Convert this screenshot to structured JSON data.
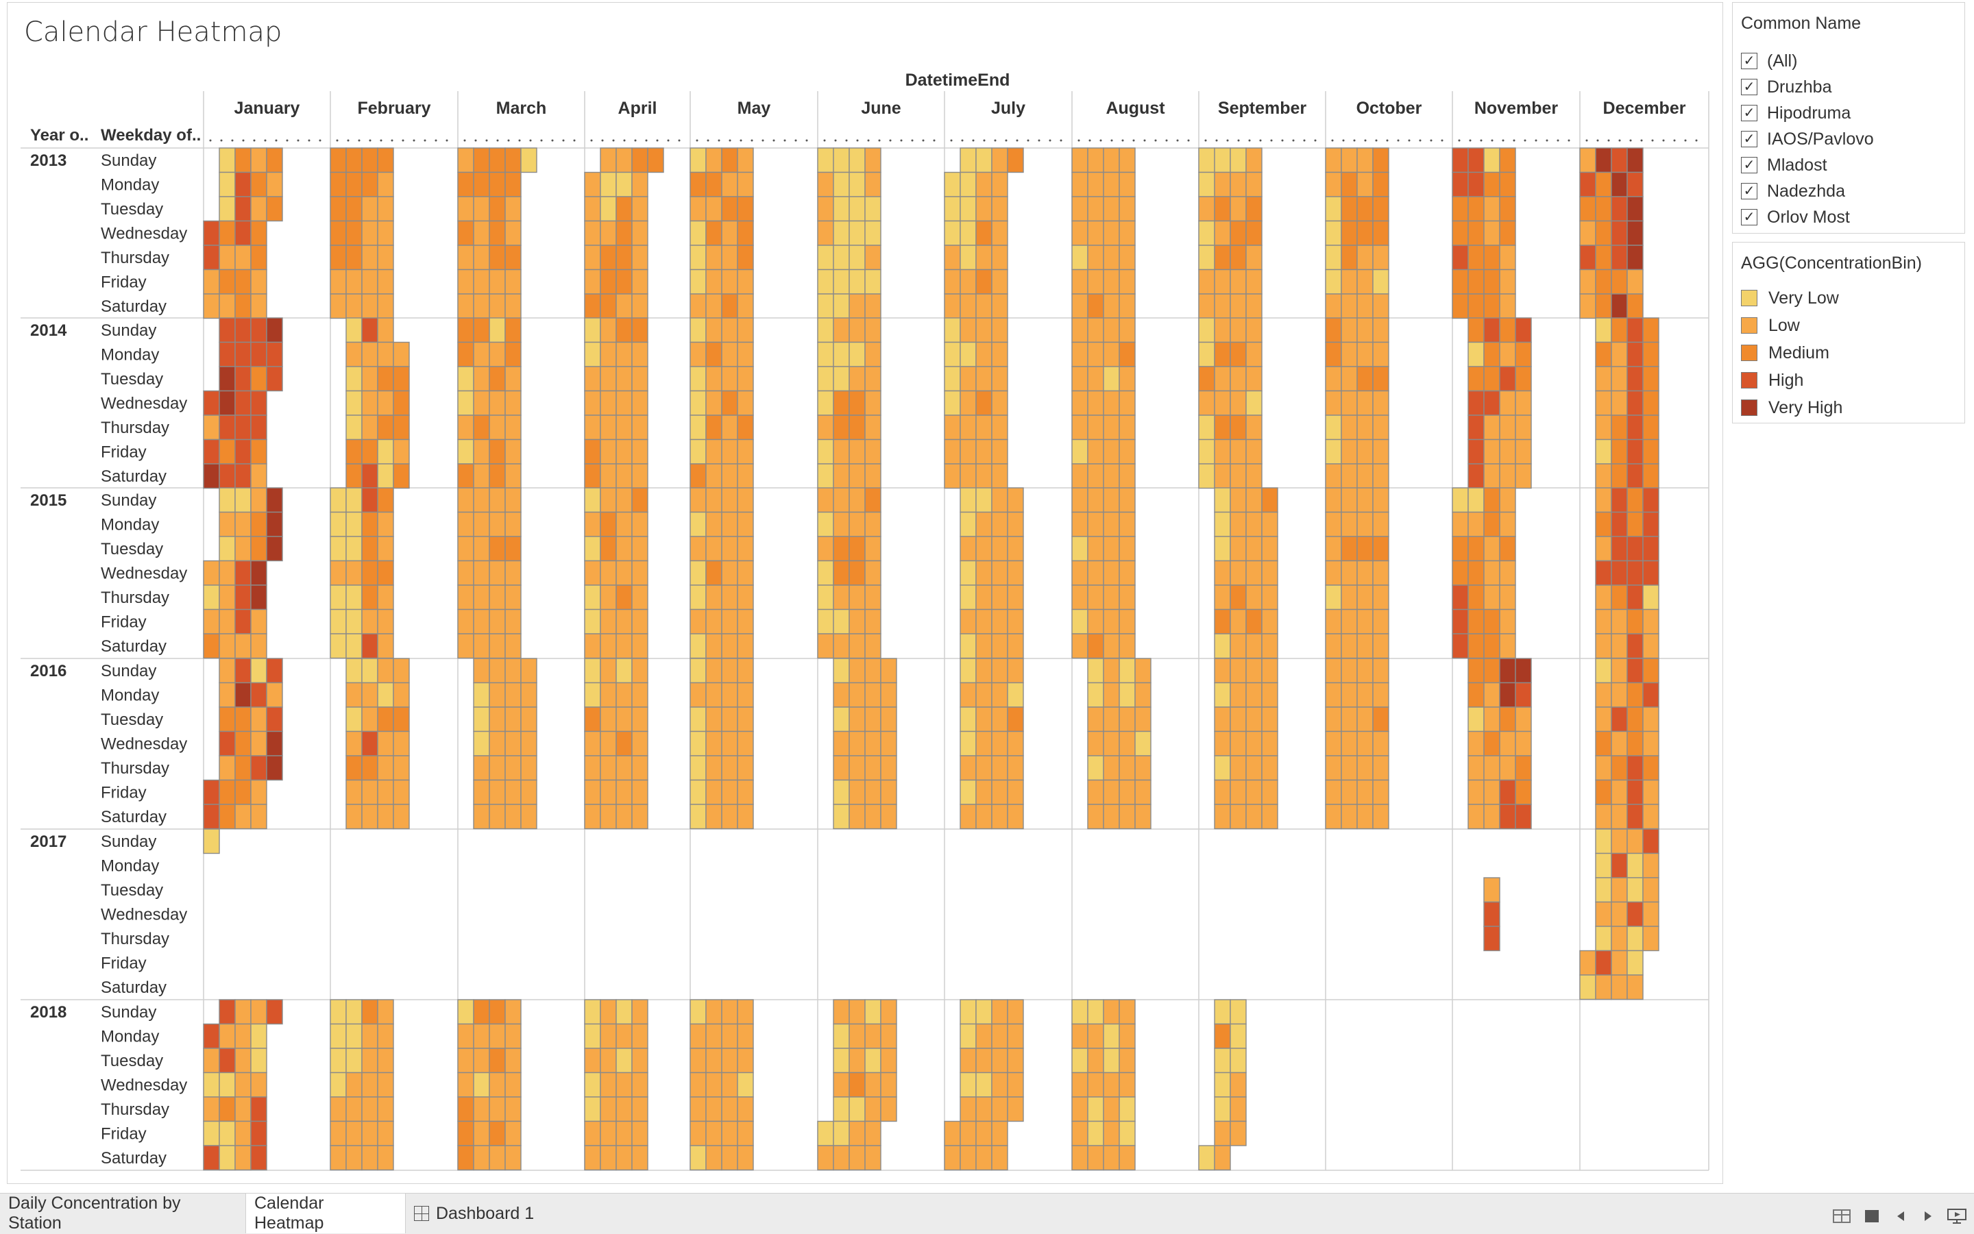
{
  "sheet_title": "Calendar Heatmap",
  "filter": {
    "title": "Common Name",
    "items": [
      {
        "label": "(All)",
        "checked": true
      },
      {
        "label": "Druzhba",
        "checked": true
      },
      {
        "label": "Hipodruma",
        "checked": true
      },
      {
        "label": "IAOS/Pavlovo",
        "checked": true
      },
      {
        "label": "Mladost",
        "checked": true
      },
      {
        "label": "Nadezhda",
        "checked": true
      },
      {
        "label": "Orlov Most",
        "checked": true
      }
    ]
  },
  "color_legend": {
    "title": "AGG(ConcentrationBin)",
    "items": [
      {
        "label": "Very Low",
        "color": "#f3d26a"
      },
      {
        "label": "Low",
        "color": "#f7a848"
      },
      {
        "label": "Medium",
        "color": "#f08a2c"
      },
      {
        "label": "High",
        "color": "#d8552a"
      },
      {
        "label": "Very High",
        "color": "#a93a23"
      }
    ]
  },
  "chart_data": {
    "type": "heatmap",
    "title": "Calendar Heatmap",
    "column_header": "DatetimeEnd",
    "row_headers": [
      "Year o..",
      "Weekday of.."
    ],
    "months": [
      "January",
      "February",
      "March",
      "April",
      "May",
      "June",
      "July",
      "August",
      "September",
      "October",
      "November",
      "December"
    ],
    "years": [
      "2013",
      "2014",
      "2015",
      "2016",
      "2017",
      "2018"
    ],
    "weekdays": [
      "Sunday",
      "Monday",
      "Tuesday",
      "Wednesday",
      "Thursday",
      "Friday",
      "Saturday"
    ],
    "bins": [
      "Very Low",
      "Low",
      "Medium",
      "High",
      "Very High"
    ],
    "cell_encoding": "Per year: one string per weekday row (Sunday..Saturday); each string lists concatenated month blocks separated by '|' (January..December), one character per week column: 0=Very Low, 1=Low, 2=Medium, 3=High, 4=Very High, '.'=no data.",
    "cells": {
      "2013": [
        ".0212|2222.|12220|.1122|0121|0001.|.0012|1111|0001.|1112|3302|1434",
        ".0321|2221.|2222.|1001.|2211|1001.|0011.|1111|0111.|1212|3322|3243",
        ".0312|2211.|1121.|1021.|1122|1000.|0011.|1111|1212.|0222|2212|2234",
        "3232.|2211.|2121.|1121.|0212|1000.|0021.|1111|0122.|0222|2212|1234",
        "3112.|2211.|1122.|1221.|0112|0001.|1011.|0111|0221.|0211.|3221|3234",
        "1221.|1111.|1111.|1221.|0111|0000.|1121.|1111|1111.|0110.|2221|1221",
        "1121.|1111.|1111.|2211.|1121.|0011.|1111.|1211|1111.|1111.|2221|1242"
      ],
      "2014": [
        ".3334|.031|2202|0122|0111|0111.|0111|1111|0111.|2111|.2323|.0232",
        ".3333|.1111|2112|0111|1211|0001.|0011|1112|0221.|2111|.0212|.2132",
        ".4323|.0122|0121|1111|0111|0011.|0111|1101|2111.|1122|.2232|.1132",
        "3433.|.0112|0111|1111|0121|0221.|0121|1111|1110.|1111|.3311|.1132",
        "1333.|.0122|1211|1111|0212|1221.|1111|1111|0221.|0111|.3111|.1232",
        "3232.|.2201|0121|2111|0111|0111.|1111|0111|0111.|0111|.3111|.0232",
        "4331.|.2302|2121|2111|2111|0111.|1111|1111|0111.|1111|.3111|.1232"
      ],
      "2015": [
        ".0014|0032|1111|0112|1111|1112|.0011|1111|.0112|1111|0021|.1323",
        ".1124|0021|1111|1211|0111|0111|.0111|1111|.0111|1111|1121|.2323",
        ".0124|0021|1122|0211|1111|1221|.1111|0111|.0111|1222|2212|.1333",
        "1134.|1122|1111|1111|0211|0221|.0111|1111|.1111|1111|2211|.3333",
        "0134.|0021|1111|0121|0111|0111|.0111|1111|.1211|0111|3211|.1230",
        "1131.|0011|1111|0111|1111|0011|.1111|0111|.2121|1111|3221|.1121",
        "2111.|0031|1111|1111|0111|1111|.0111|1211|.0111|1111|3221|.1131"
      ],
      "2016": [
        ".1303|.0011|.1111|0101|0111|.0111|.0111|.0101|.1111|1111|.2244|.0132",
        ".1431|.1101|.0111|0111|1111|.1111|.1110|.0101|.0111|1111|.2143|.1123",
        ".2213|.0122|.0111|2111|0111|.0111|.0112|.1111|.1111|1112|.0121|.1321",
        ".3214|.1311|.0111|1121|0111|.1111|.0111|.1110|.1111|1111|.1211|.2121",
        ".1234|.2211|.1111|1111|0111|.1111|.1111|.0111|.0111|1111|.1112|.1232",
        "3221.|.1111|.1111|1111|0111|.0111|.0111|.1111|.1111|1111|.1132|.2131",
        "3211.|.1111|.1111|1111|0111|.0111|.1111|.1111|.1111|1111|.1133|.1131"
      ],
      "2017": [
        "0....|....|....|....|....|.....|.....|....|.....|....|....|.0113",
        ".....|....|....|....|....|.....|.....|....|.....|....|....|.0301",
        ".....|....|....|....|....|.....|.....|....|.....|....|..1.|.0101",
        ".....|....|....|....|....|.....|.....|....|.....|....|..3.|.1131",
        ".....|....|....|....|....|.....|.....|....|.....|....|..3.|.0101",
        ".....|....|....|....|....|.....|.....|....|.....|....|....|1310",
        ".....|....|....|....|....|.....|.....|....|.....|....|....|0111"
      ],
      "2018": [
        ".3113|0021|0221|0101|0111|.1101|.0011|0011|.00..|....|....|....",
        "3110.|0011|1111|0111|1111|.0111|.0111|1101|.20..|....|....|....",
        "1310.|0011|1121|1101|1111|.0101|.1111|0101|.00..|....|....|....",
        "0011.|0111|1011|0111|1110|.1211|.0011|1111|.01..|....|....|....",
        "1213.|1111|2111|0111|1111|.0011|.1111|1010|.01..|....|....|....",
        "0013.|1111|2121|1111|1111|0011.|1111.|1010.|.11..|....|....|....",
        "3013.|1111|2111|1111|0111|1111.|1111.|1111.|01...|....|....|...."
      ]
    }
  },
  "tabs": [
    {
      "label": "Daily Concentration by Station",
      "active": false
    },
    {
      "label": "Calendar Heatmap",
      "active": true
    },
    {
      "label": "Dashboard 1",
      "active": false
    }
  ],
  "status_controls": [
    "grid-view-icon",
    "single-view-icon",
    "previous-sheet-icon",
    "next-sheet-icon",
    "presentation-mode-icon"
  ]
}
